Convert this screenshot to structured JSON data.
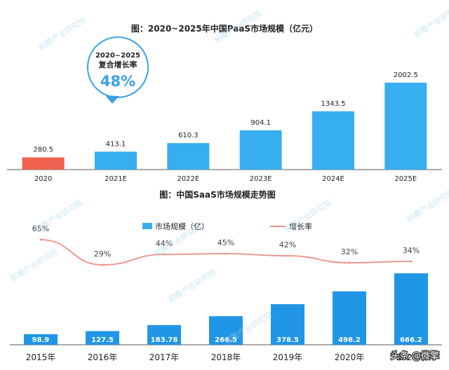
{
  "colors": {
    "bar_blue": "#36aef0",
    "bar_blue_dark": "#2196e6",
    "highlight_red": "#f0614f",
    "growth_line": "#e98f82",
    "axis": "#555555",
    "text": "#222222",
    "cagr_ring": "#3aa0e8"
  },
  "watermark": "前瞻产业研究院",
  "footer_credit": "头条 @微擎",
  "chart_data": [
    {
      "type": "bar",
      "title": "图：2020~2025年中国PaaS市场规模（亿元）",
      "categories": [
        "2020",
        "2021E",
        "2022E",
        "2023E",
        "2024E",
        "2025E"
      ],
      "values": [
        280.5,
        413.1,
        610.3,
        904.1,
        1343.5,
        2002.5
      ],
      "value_labels": [
        "280.5",
        "413.1",
        "610.3",
        "904.1",
        "1343.5",
        "2002.5"
      ],
      "highlight_index": 0,
      "ylim": [
        0,
        2002.5
      ],
      "grid": false,
      "callout": {
        "period": "2020~2025",
        "label": "复合增长率",
        "value": "48%"
      }
    },
    {
      "type": "bar+line",
      "title": "图：中国SaaS市场规模走势图",
      "categories": [
        "2015年",
        "2016年",
        "2017年",
        "2018年",
        "2019年",
        "2020年",
        "2021年"
      ],
      "series": [
        {
          "name": "市场规模（亿）",
          "type": "bar",
          "values": [
            98.9,
            127.5,
            183.78,
            266.5,
            378.5,
            498.2,
            666.2
          ],
          "labels": [
            "98.9",
            "127.5",
            "183.78",
            "266.5",
            "378.5",
            "498.2",
            "666.2"
          ]
        },
        {
          "name": "增长率",
          "type": "line",
          "values": [
            65,
            29,
            44,
            45,
            42,
            32,
            34
          ],
          "labels": [
            "65%",
            "29%",
            "44%",
            "45%",
            "42%",
            "32%",
            "34%"
          ]
        }
      ],
      "ylim": [
        0,
        666.2
      ],
      "line_ylim": [
        29,
        65
      ],
      "legend": "top-center",
      "grid": false
    }
  ]
}
